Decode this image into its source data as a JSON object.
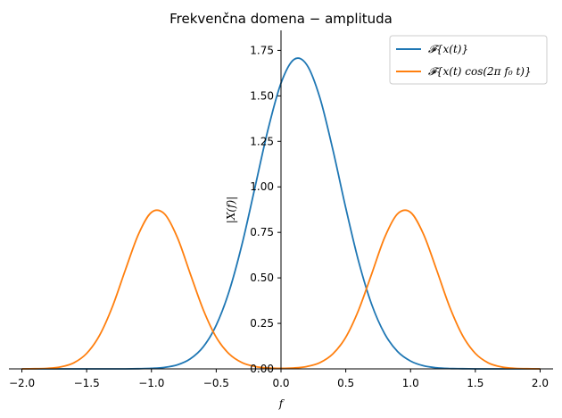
{
  "chart_data": {
    "type": "line",
    "title": "Frekvenčna domena − amplituda",
    "xlabel": "f",
    "ylabel": "|X(f)|",
    "xlim": [
      -2.1,
      2.1
    ],
    "ylim": [
      0.0,
      1.86
    ],
    "xticks": [
      -2.0,
      -1.5,
      -1.0,
      -0.5,
      0.0,
      0.5,
      1.0,
      1.5,
      2.0
    ],
    "xtick_labels": [
      "−2.0",
      "−1.5",
      "−1.0",
      "−0.5",
      "0.0",
      "0.5",
      "1.0",
      "1.5",
      "2.0"
    ],
    "yticks": [
      0.0,
      0.25,
      0.5,
      0.75,
      1.0,
      1.25,
      1.5,
      1.75
    ],
    "ytick_labels": [
      "0.00",
      "0.25",
      "0.50",
      "0.75",
      "1.00",
      "1.25",
      "1.50",
      "1.75"
    ],
    "grid": false,
    "legend_position": "top-right",
    "x": [
      -2.0,
      -1.9,
      -1.8,
      -1.7,
      -1.6,
      -1.5,
      -1.4,
      -1.3,
      -1.2,
      -1.1,
      -1.0,
      -0.9,
      -0.8,
      -0.7,
      -0.6,
      -0.5,
      -0.4,
      -0.3,
      -0.2,
      -0.1,
      0.0,
      0.1,
      0.2,
      0.3,
      0.4,
      0.5,
      0.6,
      0.7,
      0.8,
      0.9,
      1.0,
      1.1,
      1.2,
      1.3,
      1.4,
      1.5,
      1.6,
      1.7,
      1.8,
      1.9,
      2.0
    ],
    "series": [
      {
        "name": "𝓕{x(t)}",
        "color": "#1f77b4",
        "values": [
          0.0,
          0.0,
          0.0,
          0.0,
          0.0,
          0.0,
          0.0,
          0.0,
          0.0,
          0.001,
          0.003,
          0.008,
          0.022,
          0.055,
          0.121,
          0.24,
          0.427,
          0.687,
          1.0,
          1.316,
          1.57,
          1.7,
          1.67,
          1.49,
          1.205,
          0.884,
          0.588,
          0.354,
          0.193,
          0.095,
          0.043,
          0.017,
          0.006,
          0.002,
          0.001,
          0.0,
          0.0,
          0.0,
          0.0,
          0.0,
          0.0
        ]
      },
      {
        "name": "𝓕{x(t) cos(2π f₀ t)}",
        "color": "#ff7f0e",
        "values": [
          0.0,
          0.001,
          0.003,
          0.011,
          0.033,
          0.085,
          0.185,
          0.344,
          0.546,
          0.74,
          0.86,
          0.852,
          0.722,
          0.522,
          0.325,
          0.174,
          0.082,
          0.034,
          0.013,
          0.005,
          0.003,
          0.005,
          0.013,
          0.034,
          0.082,
          0.174,
          0.325,
          0.522,
          0.722,
          0.852,
          0.86,
          0.74,
          0.546,
          0.344,
          0.185,
          0.085,
          0.033,
          0.011,
          0.003,
          0.001,
          0.0
        ]
      }
    ]
  }
}
